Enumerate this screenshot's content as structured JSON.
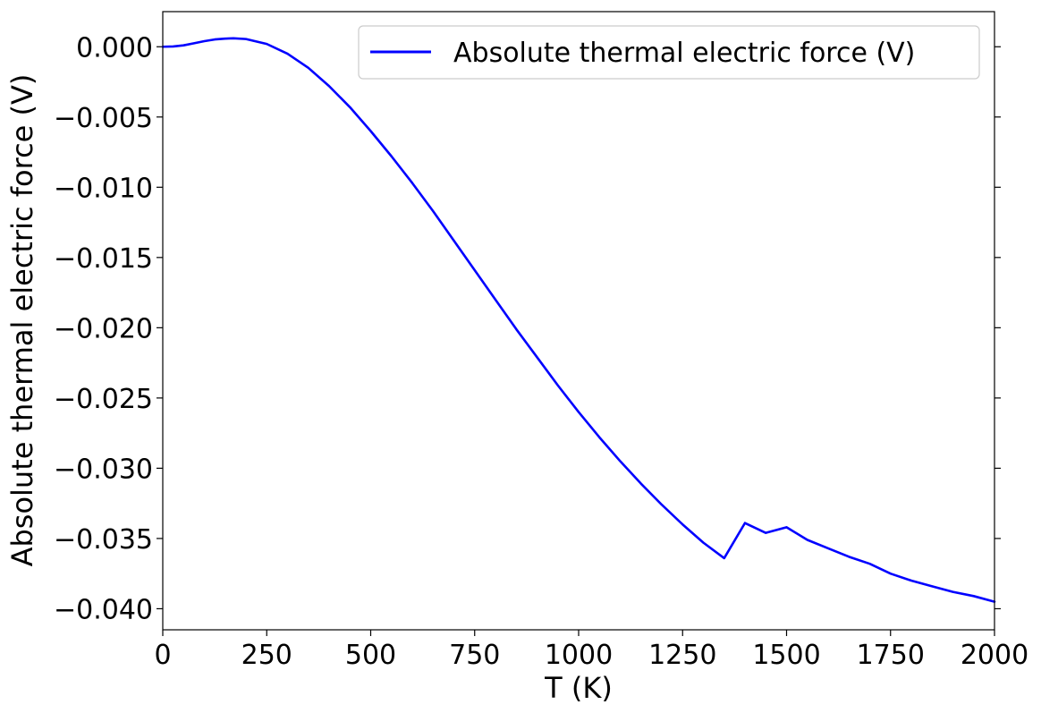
{
  "chart_data": {
    "type": "line",
    "title": "",
    "xlabel": "T (K)",
    "ylabel": "Absolute thermal electric force (V)",
    "xlim": [
      0,
      2000
    ],
    "ylim": [
      -0.0415,
      0.0025
    ],
    "x_ticks": [
      0,
      250,
      500,
      750,
      1000,
      1250,
      1500,
      1750,
      2000
    ],
    "x_tick_labels": [
      "0",
      "250",
      "500",
      "750",
      "1000",
      "1250",
      "1500",
      "1750",
      "2000"
    ],
    "y_ticks": [
      0.0,
      -0.005,
      -0.01,
      -0.015,
      -0.02,
      -0.025,
      -0.03,
      -0.035,
      -0.04
    ],
    "y_tick_labels": [
      "0.000",
      "−0.005",
      "−0.010",
      "−0.015",
      "−0.020",
      "−0.025",
      "−0.030",
      "−0.035",
      "−0.040"
    ],
    "grid": false,
    "legend_position": "top-right",
    "series": [
      {
        "name": "Absolute thermal electric force (V)",
        "color": "#0000ff",
        "x": [
          0,
          25,
          50,
          75,
          100,
          125,
          150,
          170,
          200,
          250,
          300,
          350,
          400,
          450,
          500,
          550,
          600,
          650,
          700,
          750,
          800,
          850,
          900,
          950,
          1000,
          1050,
          1100,
          1150,
          1200,
          1250,
          1300,
          1350,
          1400,
          1450,
          1500,
          1550,
          1600,
          1650,
          1700,
          1750,
          1800,
          1850,
          1900,
          1950,
          2000
        ],
        "y": [
          0.0,
          2e-05,
          0.0001,
          0.00025,
          0.0004,
          0.00052,
          0.00058,
          0.0006,
          0.00055,
          0.0002,
          -0.0005,
          -0.0015,
          -0.0028,
          -0.0043,
          -0.006,
          -0.0078,
          -0.0097,
          -0.0117,
          -0.0138,
          -0.0159,
          -0.018,
          -0.0201,
          -0.0221,
          -0.0241,
          -0.026,
          -0.0278,
          -0.0295,
          -0.0311,
          -0.0326,
          -0.034,
          -0.0353,
          -0.0364,
          -0.0339,
          -0.0346,
          -0.0342,
          -0.0351,
          -0.0357,
          -0.0363,
          -0.0368,
          -0.0375,
          -0.038,
          -0.0384,
          -0.0388,
          -0.0391,
          -0.0395
        ]
      }
    ]
  }
}
